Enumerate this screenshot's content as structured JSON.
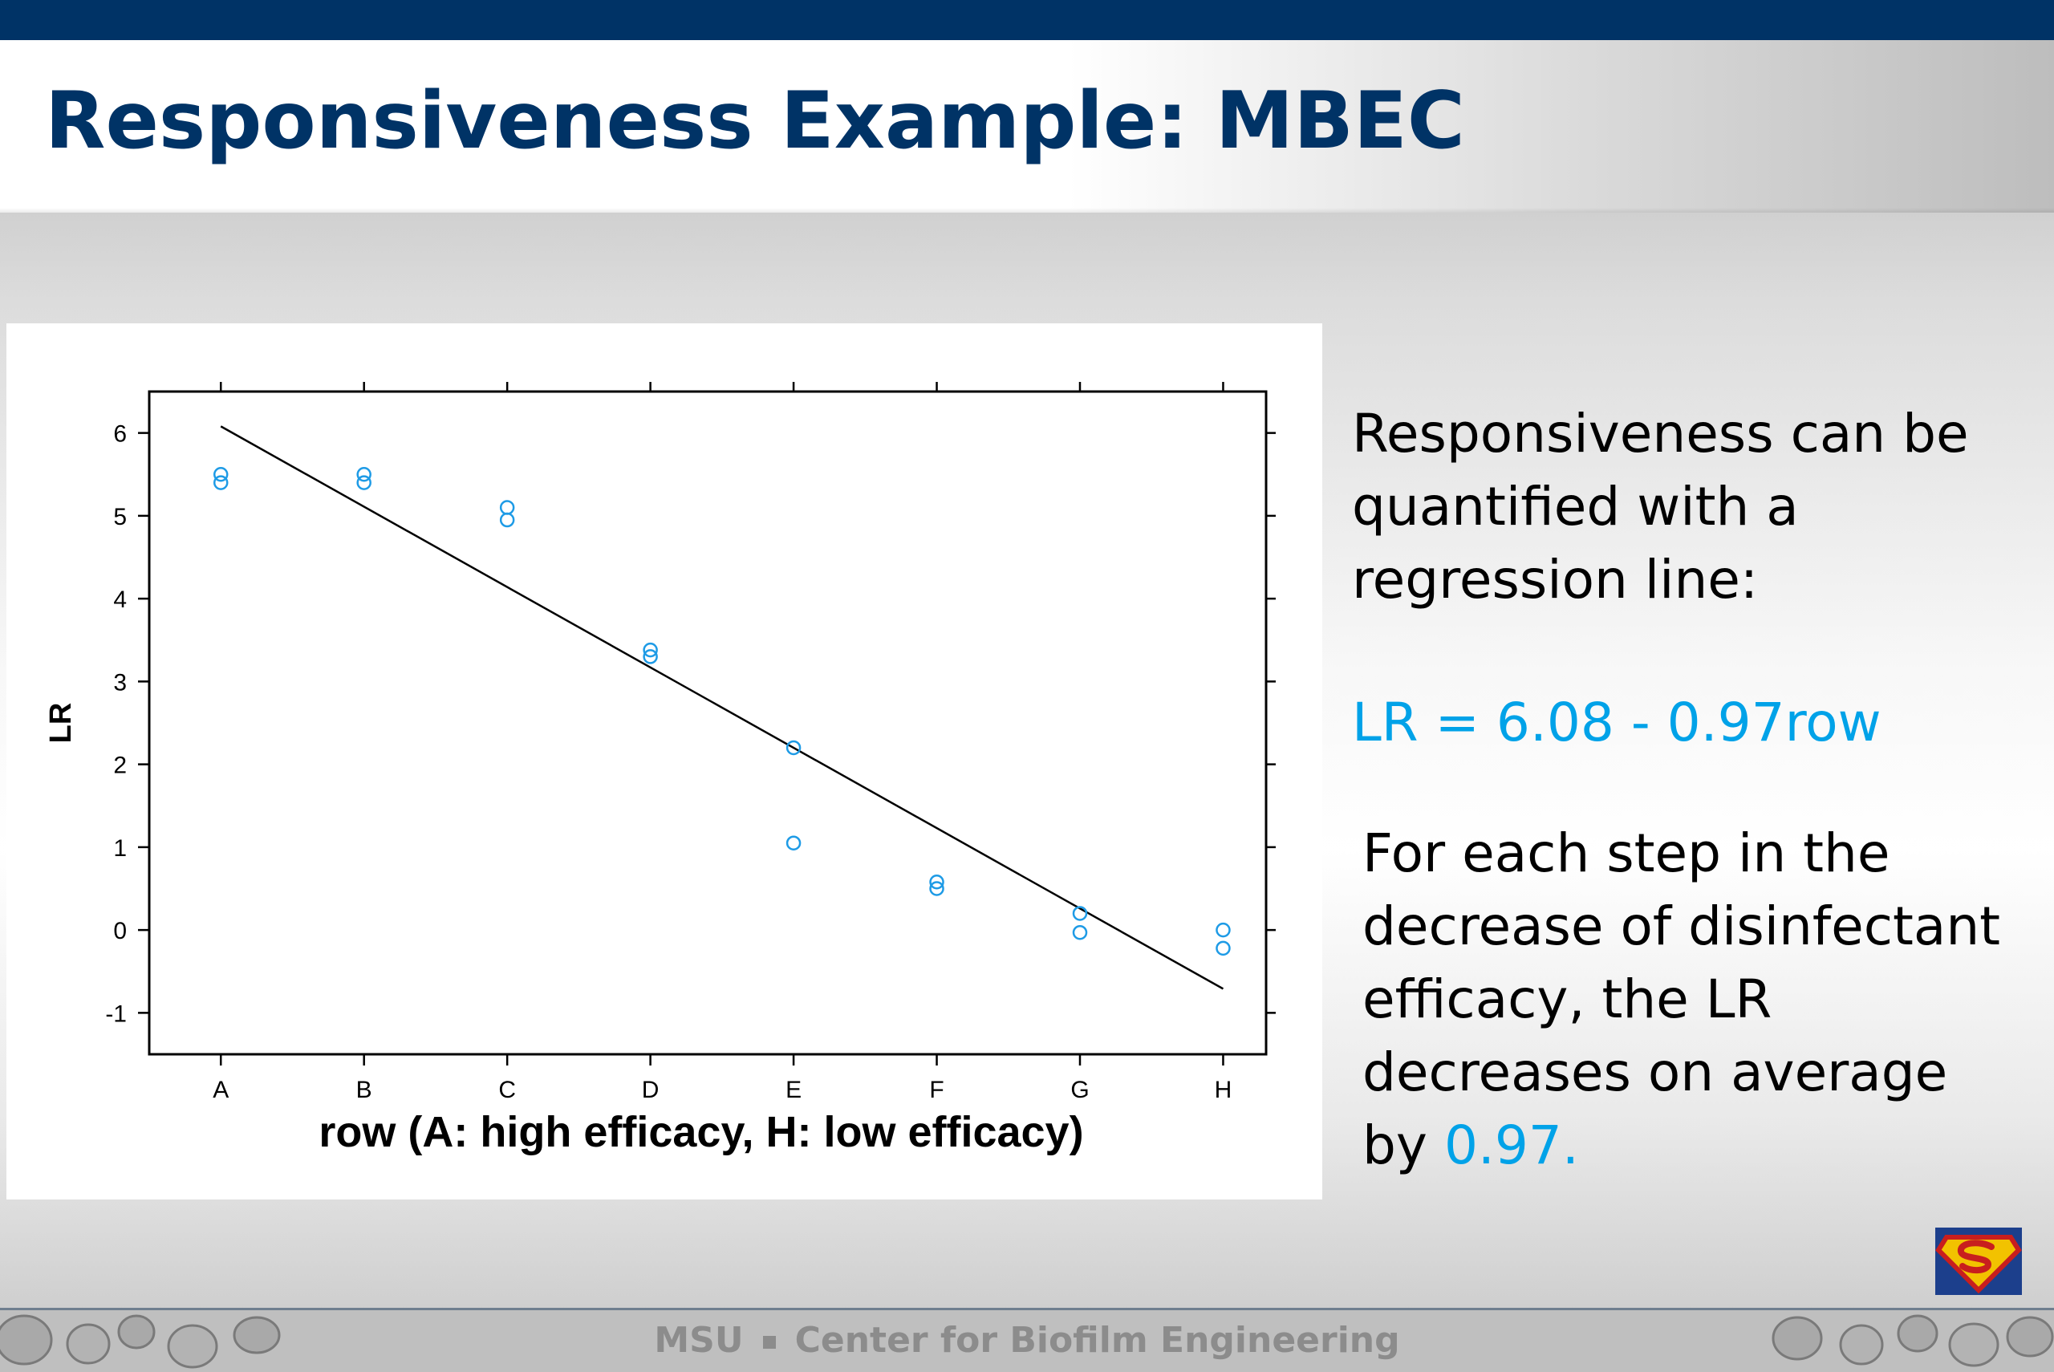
{
  "slide": {
    "title": "Responsiveness Example: MBEC",
    "body_1": "Responsiveness can be quantified with a regression line:",
    "equation": "LR = 6.08 - 0.97row",
    "body_2_prefix": "For each step in the decrease of disinfectant efficacy, the LR decreases on average by ",
    "body_2_value": "0.97.",
    "footer_left": "MSU",
    "footer_right": "Center for Biofilm Engineering",
    "logo_icon": "superman-shield-icon",
    "colors": {
      "title": "#003366",
      "top_bar": "#003366",
      "accent": "#00a2e8",
      "marker": "#1e9be6",
      "footer_text": "#8c8c8c"
    }
  },
  "chart_data": {
    "type": "scatter",
    "xlabel": "row (A: high efficacy, H: low efficacy)",
    "ylabel": "LR",
    "categories": [
      "A",
      "B",
      "C",
      "D",
      "E",
      "F",
      "G",
      "H"
    ],
    "yticks": [
      -1,
      0,
      1,
      2,
      3,
      4,
      5,
      6
    ],
    "ylim": [
      -1.5,
      6.5
    ],
    "grid": false,
    "points": [
      {
        "x": "A",
        "y": 5.5
      },
      {
        "x": "A",
        "y": 5.4
      },
      {
        "x": "B",
        "y": 5.5
      },
      {
        "x": "B",
        "y": 5.4
      },
      {
        "x": "C",
        "y": 5.1
      },
      {
        "x": "C",
        "y": 4.95
      },
      {
        "x": "D",
        "y": 3.38
      },
      {
        "x": "D",
        "y": 3.3
      },
      {
        "x": "E",
        "y": 2.2
      },
      {
        "x": "E",
        "y": 1.05
      },
      {
        "x": "F",
        "y": 0.58
      },
      {
        "x": "F",
        "y": 0.5
      },
      {
        "x": "G",
        "y": 0.2
      },
      {
        "x": "G",
        "y": -0.03
      },
      {
        "x": "H",
        "y": 0.0
      },
      {
        "x": "H",
        "y": -0.22
      }
    ],
    "regression": {
      "intercept": 6.08,
      "slope": -0.97
    }
  }
}
